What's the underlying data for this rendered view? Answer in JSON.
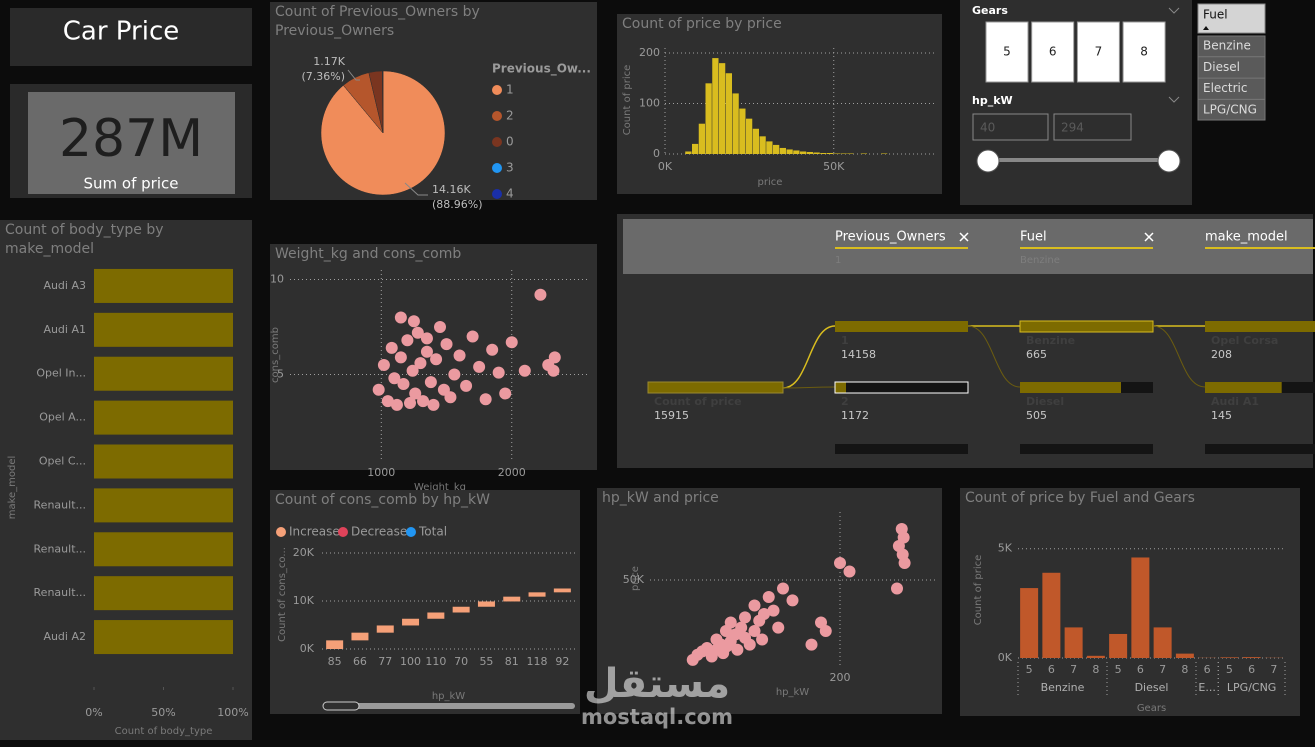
{
  "title": "Car Price",
  "kpi": {
    "value": "287M",
    "label": "Sum of price"
  },
  "chart_data": [
    {
      "type": "pie",
      "title": "Count of Previous_Owners by Previous_Owners",
      "legend_title": "Previous_Ow...",
      "categories": [
        "1",
        "2",
        "0",
        "3",
        "4"
      ],
      "values": [
        14158,
        1172,
        560,
        20,
        5
      ],
      "colors": [
        "#f08c5a",
        "#b5562c",
        "#7a3520",
        "#2196f3",
        "#1a2fa8"
      ],
      "value_labels": [
        "14.16K",
        "1.17K",
        null,
        null,
        null
      ],
      "percent_labels": [
        "(88.96%)",
        "(7.36%)",
        null,
        null,
        null
      ]
    },
    {
      "type": "histogram",
      "title": "Count of price by price",
      "x_label": "price",
      "y_label": "Count of price",
      "bins": [
        6000,
        8000,
        10000,
        12000,
        14000,
        16000,
        18000,
        20000,
        22000,
        24000,
        26000,
        28000,
        30000,
        32000,
        34000,
        36000,
        38000,
        40000,
        42000,
        44000,
        46000,
        48000,
        50000,
        52000,
        54000,
        56000,
        58000,
        60000,
        62000,
        64000,
        66000
      ],
      "counts": [
        5,
        20,
        60,
        140,
        190,
        180,
        160,
        120,
        90,
        70,
        50,
        35,
        25,
        18,
        12,
        9,
        7,
        5,
        4,
        3,
        2,
        2,
        1,
        1,
        1,
        0,
        1,
        0,
        0,
        1
      ],
      "color": "#d9bd1f",
      "xlim": [
        0,
        80000
      ],
      "xticks": [
        {
          "value": 0,
          "label": "0K"
        },
        {
          "value": 50000,
          "label": "50K"
        }
      ],
      "ylim": [
        0,
        210
      ],
      "yticks": [
        0,
        100,
        200
      ],
      "grid": true
    },
    {
      "type": "bar",
      "orientation": "horizontal",
      "title": "Count of body_type by make_model",
      "categories": [
        "Audi A3",
        "Audi A1",
        "Opel In...",
        "Opel A...",
        "Opel C...",
        "Renault...",
        "Renault...",
        "Renault...",
        "Audi A2"
      ],
      "values": [
        100,
        100,
        100,
        100,
        100,
        100,
        100,
        100,
        100
      ],
      "color": "#7d6b00",
      "x_label": "Count of body_type",
      "y_label": "make_model",
      "xlim": [
        0,
        100
      ],
      "xticks": [
        {
          "value": 0,
          "label": "0%"
        },
        {
          "value": 50,
          "label": "50%"
        },
        {
          "value": 100,
          "label": "100%"
        }
      ]
    },
    {
      "type": "scatter",
      "title": "Weight_kg and cons_comb",
      "x_label": "Weight_kg",
      "y_label": "cons_comb",
      "color": "#eb9aa0",
      "x": [
        980,
        1020,
        1050,
        1080,
        1100,
        1120,
        1150,
        1170,
        1200,
        1220,
        1240,
        1260,
        1280,
        1300,
        1320,
        1350,
        1380,
        1400,
        1420,
        1450,
        1480,
        1500,
        1530,
        1560,
        1600,
        1650,
        1700,
        1750,
        1800,
        1850,
        1900,
        1950,
        2000,
        2100,
        1150,
        1250,
        1350,
        2280,
        2320,
        2330,
        2220
      ],
      "values": [
        4.2,
        5.5,
        3.6,
        6.4,
        4.8,
        3.4,
        5.9,
        4.5,
        6.8,
        3.5,
        5.2,
        4.0,
        7.2,
        5.6,
        3.6,
        6.2,
        4.6,
        3.4,
        5.8,
        7.5,
        4.2,
        6.6,
        3.8,
        5.0,
        6.0,
        4.4,
        7.0,
        5.4,
        3.7,
        6.3,
        5.1,
        4.0,
        6.7,
        5.2,
        8.0,
        7.8,
        6.9,
        5.5,
        5.2,
        5.9,
        9.2
      ],
      "xlim": [
        300,
        2600
      ],
      "xticks": [
        1000,
        2000
      ],
      "ylim": [
        0.5,
        10.5
      ],
      "yticks": [
        5,
        10
      ],
      "grid": true
    },
    {
      "type": "waterfall",
      "title": "Count of cons_comb by hp_kW",
      "x_label": "hp_kW",
      "y_label": "Count of cons_co...",
      "legend": [
        {
          "name": "Increase",
          "color": "#f5a078"
        },
        {
          "name": "Decrease",
          "color": "#e0435a"
        },
        {
          "name": "Total",
          "color": "#2196f3"
        }
      ],
      "categories": [
        "85",
        "66",
        "77",
        "100",
        "110",
        "70",
        "55",
        "81",
        "118",
        "92"
      ],
      "values": [
        1800,
        1600,
        1500,
        1400,
        1300,
        1200,
        1100,
        1000,
        900,
        800
      ],
      "ylim": [
        0,
        22700
      ],
      "yticks": [
        {
          "value": 0,
          "label": "0K"
        },
        {
          "value": 10000,
          "label": "10K"
        },
        {
          "value": 20000,
          "label": "20K"
        }
      ],
      "grid": true
    },
    {
      "type": "scatter",
      "title": "hp_kW and price",
      "x_label": "hp_kW",
      "y_label": "price",
      "color": "#eb9aa0",
      "x": [
        45,
        50,
        55,
        60,
        65,
        70,
        70,
        75,
        77,
        80,
        81,
        85,
        85,
        90,
        92,
        96,
        100,
        100,
        105,
        110,
        110,
        115,
        118,
        120,
        125,
        130,
        135,
        140,
        150,
        170,
        180,
        185,
        200,
        210,
        260,
        262,
        265,
        266,
        267,
        268
      ],
      "values": [
        3000,
        6000,
        8000,
        10000,
        5000,
        9000,
        15000,
        12000,
        7000,
        20000,
        11000,
        14000,
        25000,
        18000,
        9000,
        22000,
        16000,
        28000,
        12000,
        20000,
        35000,
        26000,
        15000,
        30000,
        40000,
        32000,
        22000,
        45000,
        38000,
        12000,
        25000,
        20000,
        60000,
        55000,
        45000,
        70000,
        80000,
        65000,
        75000,
        60000
      ],
      "xlim": [
        0,
        300
      ],
      "xticks": [
        200
      ],
      "ylim": [
        0,
        90000
      ],
      "yticks": [
        {
          "value": 50000,
          "label": "50K"
        }
      ],
      "grid": true
    },
    {
      "type": "column",
      "title": "Count of price by Fuel and Gears",
      "x_label": "Gears",
      "y_label": "Count of price",
      "color": "#c0582a",
      "groups": [
        {
          "name": "Benzine",
          "categories": [
            "5",
            "6",
            "7",
            "8"
          ],
          "values": [
            3200,
            3900,
            1400,
            100
          ]
        },
        {
          "name": "Diesel",
          "categories": [
            "5",
            "6",
            "7",
            "8"
          ],
          "values": [
            1100,
            4600,
            1400,
            200
          ]
        },
        {
          "name": "E...",
          "categories": [
            "6"
          ],
          "values": [
            10
          ]
        },
        {
          "name": "LPG/CNG",
          "categories": [
            "5",
            "6",
            "7"
          ],
          "values": [
            30,
            40,
            10
          ]
        }
      ],
      "ylim": [
        0,
        5400
      ],
      "yticks": [
        {
          "value": 0,
          "label": "0K"
        },
        {
          "value": 5000,
          "label": "5K"
        }
      ],
      "grid": true
    }
  ],
  "slicers": {
    "gears": {
      "title": "Gears",
      "options": [
        "5",
        "6",
        "7",
        "8"
      ]
    },
    "hp_kw": {
      "title": "hp_kW",
      "min": "40",
      "max": "294"
    },
    "fuel": {
      "title": "Fuel",
      "options": [
        "Benzine",
        "Diesel",
        "Electric",
        "LPG/CNG"
      ]
    }
  },
  "decomposition": {
    "levels": [
      {
        "name": "Previous_Owners",
        "selected": "1"
      },
      {
        "name": "Fuel",
        "selected": "Benzine"
      },
      {
        "name": "make_model"
      }
    ],
    "root": {
      "label": "Count of price",
      "value": 15915
    },
    "columns": [
      [
        {
          "label": "1",
          "value": 14158
        },
        {
          "label": "2",
          "value": 1172
        }
      ],
      [
        {
          "label": "Benzine",
          "value": 665
        },
        {
          "label": "Diesel",
          "value": 505
        }
      ],
      [
        {
          "label": "Opel Corsa",
          "value": 208
        },
        {
          "label": "Audi A1",
          "value": 145
        }
      ]
    ]
  },
  "watermark": {
    "arabic": "مستقل",
    "latin": "mostaql.com"
  }
}
